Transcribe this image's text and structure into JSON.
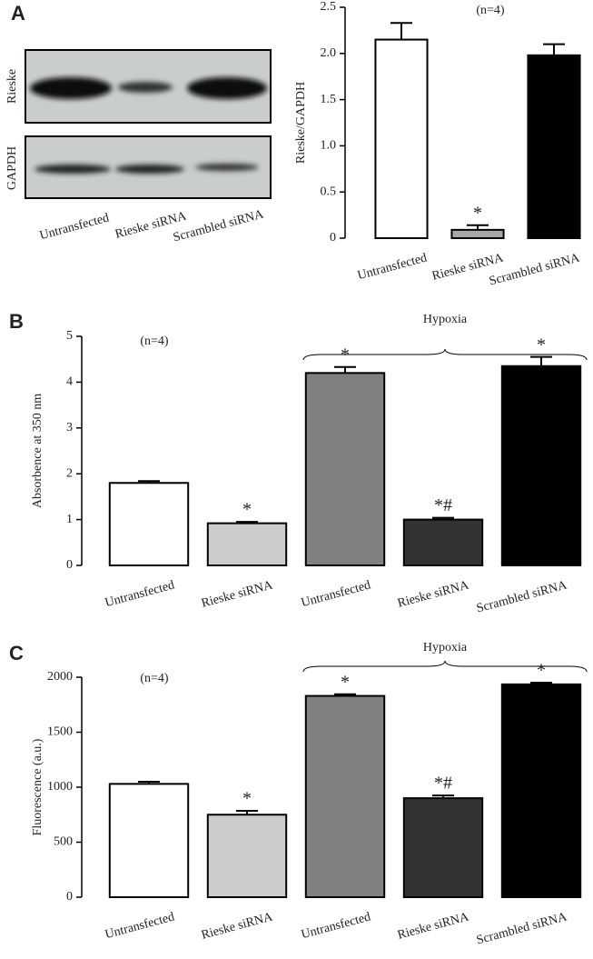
{
  "blot": {
    "panel_label": "A",
    "rows": [
      "Rieske",
      "GAPDH"
    ],
    "lanes": [
      "Untransfected",
      "Rieske siRNA",
      "Scrambled siRNA"
    ]
  },
  "chart_data": [
    {
      "type": "bar",
      "ylabel": "Rieske/GAPDH",
      "annotations": [
        "(n=4)"
      ],
      "categories": [
        "Untransfected",
        "Rieske siRNA",
        "Scrambled siRNA"
      ],
      "values": [
        2.15,
        0.09,
        1.98
      ],
      "errors": [
        0.18,
        0.05,
        0.12
      ],
      "colors": [
        "#ffffff",
        "#a8a8a8",
        "#000000"
      ],
      "markers": [
        null,
        "*",
        null
      ],
      "ylim": [
        0,
        2.5
      ],
      "yticks": [
        0,
        0.5,
        {
          "value": 1,
          "label": "1.0"
        },
        1.5,
        {
          "value": 2,
          "label": "2.0"
        },
        2.5
      ]
    },
    {
      "type": "bar",
      "panel_label": "B",
      "ylabel": "Absorbence at 350 nm",
      "annotations": [
        "(n=4)",
        "Hypoxia"
      ],
      "categories": [
        "Untransfected",
        "Rieske siRNA",
        "Untransfected",
        "Rieske siRNA",
        "Scrambled siRNA"
      ],
      "values": [
        1.8,
        0.92,
        4.2,
        1.0,
        4.35
      ],
      "errors": [
        0.04,
        0.03,
        0.13,
        0.04,
        0.2
      ],
      "colors": [
        "#ffffff",
        "#cccccc",
        "#808080",
        "#333333",
        "#000000"
      ],
      "markers": [
        null,
        "*",
        "*",
        "*#",
        "*"
      ],
      "ylim": [
        0,
        5
      ],
      "yticks": [
        0,
        1,
        2,
        3,
        4,
        5
      ]
    },
    {
      "type": "bar",
      "panel_label": "C",
      "ylabel": "Fluorescence (a.u.)",
      "annotations": [
        "(n=4)",
        "Hypoxia"
      ],
      "categories": [
        "Untransfected",
        "Rieske siRNA",
        "Untransfected",
        "Rieske siRNA",
        "Scrambled siRNA"
      ],
      "values": [
        1030,
        750,
        1830,
        900,
        1935
      ],
      "errors": [
        20,
        35,
        15,
        25,
        15
      ],
      "colors": [
        "#ffffff",
        "#cccccc",
        "#808080",
        "#333333",
        "#000000"
      ],
      "markers": [
        null,
        "*",
        "*",
        "*#",
        "*"
      ],
      "ylim": [
        0,
        2000
      ],
      "yticks": [
        0,
        500,
        1000,
        1500,
        2000
      ]
    }
  ]
}
